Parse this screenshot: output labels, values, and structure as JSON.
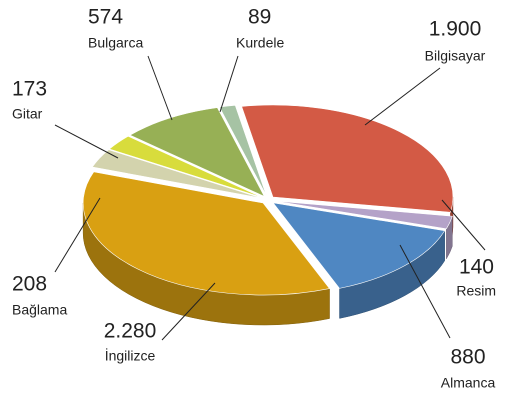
{
  "chart_data": {
    "type": "pie3d",
    "categories": [
      "Bilgisayar",
      "Resim",
      "Almanca",
      "İngilizce",
      "Bağlama",
      "Gitar",
      "Bulgarca",
      "Kurdele"
    ],
    "values": [
      1900,
      140,
      880,
      2280,
      208,
      173,
      574,
      89
    ],
    "value_labels": [
      "1.900",
      "140",
      "880",
      "2.280",
      "208",
      "173",
      "574",
      "89"
    ],
    "colors": [
      "#d35a45",
      "#b4a2c8",
      "#4f87c2",
      "#d9a012",
      "#d3d3ad",
      "#d8dc3c",
      "#97b055",
      "#a6c3a4"
    ]
  }
}
